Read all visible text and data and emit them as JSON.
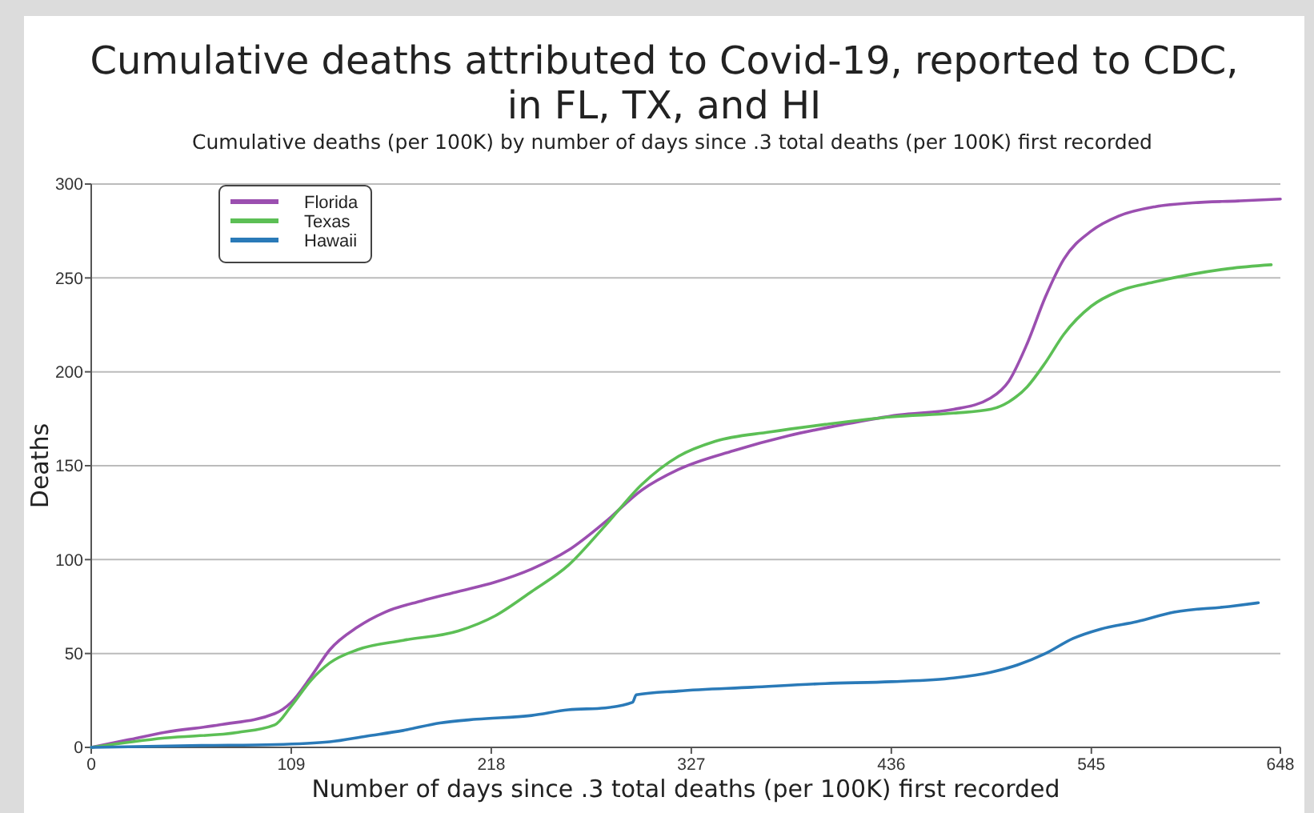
{
  "chart_data": {
    "type": "line",
    "title": "Cumulative deaths attributed to Covid-19, reported to CDC, in FL, TX, and HI",
    "subtitle": "Cumulative deaths (per 100K) by number of days since .3 total deaths (per 100K) first recorded",
    "xlabel": "Number of days since .3 total deaths (per 100K) first recorded",
    "ylabel": "Deaths",
    "xlim": [
      0,
      648
    ],
    "xticks": [
      0,
      109,
      218,
      327,
      436,
      545,
      648
    ],
    "ylim": [
      0,
      300
    ],
    "yticks": [
      0,
      50,
      100,
      150,
      200,
      250,
      300
    ],
    "grid": "y",
    "legend": "top left",
    "line_style": "solid",
    "marker": "none",
    "series": [
      {
        "name": "Florida",
        "color": "#9b4fb0",
        "x": [
          0,
          20,
          40,
          70,
          100,
          109,
          120,
          130,
          145,
          160,
          180,
          200,
          220,
          240,
          260,
          280,
          300,
          320,
          350,
          380,
          410,
          440,
          470,
          490,
          500,
          510,
          520,
          530,
          545,
          560,
          580,
          600,
          625,
          648
        ],
        "values": [
          0,
          4,
          8,
          12,
          18,
          24,
          38,
          52,
          64,
          72,
          78,
          83,
          88,
          95,
          105,
          120,
          137,
          148,
          158,
          166,
          172,
          177,
          180,
          186,
          195,
          215,
          240,
          260,
          275,
          283,
          288,
          290,
          291,
          292
        ]
      },
      {
        "name": "Texas",
        "color": "#5cbf55",
        "x": [
          0,
          40,
          80,
          100,
          109,
          120,
          130,
          145,
          170,
          200,
          220,
          240,
          260,
          280,
          300,
          320,
          340,
          370,
          400,
          436,
          470,
          490,
          500,
          510,
          520,
          530,
          545,
          560,
          580,
          600,
          620,
          643
        ],
        "values": [
          0,
          5,
          8,
          12,
          22,
          36,
          45,
          52,
          57,
          62,
          70,
          83,
          97,
          118,
          140,
          155,
          163,
          168,
          172,
          176,
          178,
          180,
          184,
          192,
          205,
          220,
          235,
          243,
          248,
          252,
          255,
          257
        ]
      },
      {
        "name": "Hawaii",
        "color": "#2a7ab8",
        "x": [
          0,
          60,
          100,
          130,
          150,
          170,
          190,
          210,
          240,
          260,
          280,
          295,
          297,
          320,
          360,
          400,
          436,
          470,
          490,
          505,
          520,
          535,
          550,
          570,
          590,
          620,
          636
        ],
        "values": [
          0,
          1,
          1.5,
          3,
          6,
          9,
          13,
          15,
          17,
          20,
          21,
          24,
          28,
          30,
          32,
          34,
          35,
          37,
          40,
          44,
          50,
          58,
          63,
          67,
          72,
          75,
          77
        ]
      }
    ]
  }
}
